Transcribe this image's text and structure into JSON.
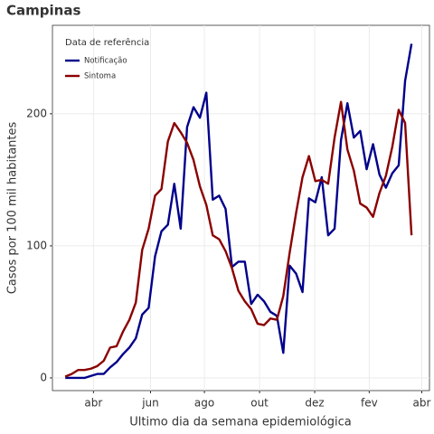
{
  "chart_data": {
    "type": "line",
    "title": "Campinas",
    "xlabel": "Ultimo dia da semana epidemiológica",
    "ylabel": "Casos por 100 mil habitantes",
    "legend_title": "Data de referência",
    "legend": "top-left",
    "grid": true,
    "x": [
      0,
      1,
      2,
      3,
      4,
      5,
      6,
      7,
      8,
      9,
      10,
      11,
      12,
      13,
      14,
      15,
      16,
      17,
      18,
      19,
      20,
      21,
      22,
      23,
      24,
      25,
      26,
      27,
      28,
      29,
      30,
      31,
      32,
      33,
      34,
      35,
      36,
      37,
      38,
      39,
      40,
      41,
      42,
      43,
      44,
      45,
      46,
      47,
      48,
      49,
      50,
      51,
      52,
      53,
      54
    ],
    "xlim": [
      -2.0,
      56.8
    ],
    "xticks": [
      {
        "value": 4.4,
        "label": "abr"
      },
      {
        "value": 13.3,
        "label": "jun"
      },
      {
        "value": 21.7,
        "label": "ago"
      },
      {
        "value": 30.3,
        "label": "out"
      },
      {
        "value": 38.9,
        "label": "dez"
      },
      {
        "value": 47.4,
        "label": "fev"
      },
      {
        "value": 55.6,
        "label": "abr"
      }
    ],
    "ylim": [
      -9.6,
      267
    ],
    "yticks": [
      0,
      100,
      200
    ],
    "series": [
      {
        "name": "Notificação",
        "color": "#00008b",
        "values": [
          0,
          0,
          0,
          0,
          1.5,
          3,
          3,
          8,
          12,
          18,
          23,
          30,
          48,
          53,
          92,
          111,
          116,
          147,
          113,
          190,
          205,
          197,
          216,
          135,
          138,
          128,
          84,
          88,
          88,
          56,
          63,
          58,
          50,
          47,
          19,
          85,
          79,
          65,
          136,
          133,
          152,
          108,
          113,
          180,
          208,
          182,
          187,
          158,
          177,
          154,
          144,
          155,
          161,
          225,
          253
        ]
      },
      {
        "name": "Sintoma",
        "color": "#8b0000",
        "values": [
          1,
          3,
          6,
          6,
          7,
          9,
          13,
          23,
          24,
          35,
          44,
          57,
          97,
          113,
          138,
          143,
          179,
          193,
          186,
          178,
          165,
          145,
          131,
          108,
          105,
          96,
          83,
          66,
          58,
          52,
          41,
          40,
          45,
          44,
          62,
          95,
          125,
          152,
          168,
          149,
          150,
          147,
          182,
          209,
          173,
          157,
          132,
          129,
          122,
          140,
          153,
          175,
          203,
          193,
          108
        ]
      }
    ]
  }
}
